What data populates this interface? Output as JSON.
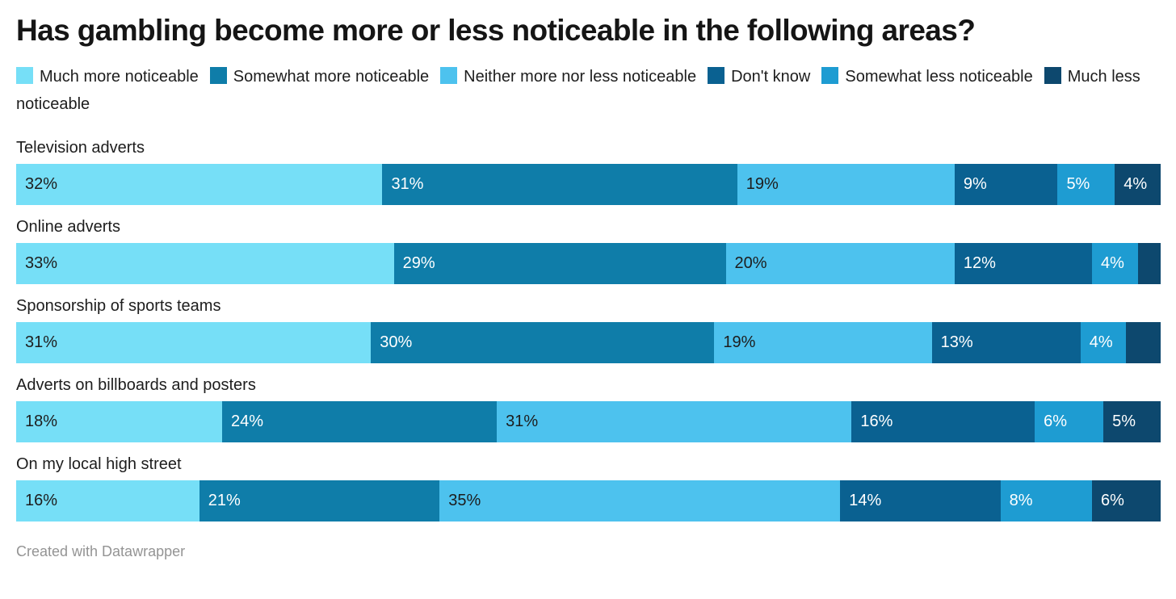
{
  "header": {
    "title": "Has gambling become more or less noticeable in the following areas?"
  },
  "footer": {
    "credit": "Created with Datawrapper"
  },
  "chart_data": {
    "type": "bar",
    "orientation": "horizontal",
    "stacked": true,
    "title": "Has gambling become more or less noticeable in the following areas?",
    "legend_position": "top",
    "value_suffix": "%",
    "label_min_value": 4,
    "axis_range": [
      0,
      100
    ],
    "grid": false,
    "categories": [
      "Television adverts",
      "Online adverts",
      "Sponsorship of sports teams",
      "Adverts on billboards and posters",
      "On my local high street"
    ],
    "series": [
      {
        "name": "Much more noticeable",
        "color": "#76dff7",
        "label_color": "#1d1d1d",
        "values": [
          32,
          33,
          31,
          18,
          16
        ]
      },
      {
        "name": "Somewhat more noticeable",
        "color": "#0f7da9",
        "label_color": "#ffffff",
        "values": [
          31,
          29,
          30,
          24,
          21
        ]
      },
      {
        "name": "Neither more nor less noticeable",
        "color": "#4dc2ee",
        "label_color": "#1d1d1d",
        "values": [
          19,
          20,
          19,
          31,
          35
        ]
      },
      {
        "name": "Don't know",
        "color": "#0a6191",
        "label_color": "#ffffff",
        "values": [
          9,
          12,
          13,
          16,
          14
        ]
      },
      {
        "name": "Somewhat less noticeable",
        "color": "#1e9cd2",
        "label_color": "#ffffff",
        "values": [
          5,
          4,
          4,
          6,
          8
        ]
      },
      {
        "name": "Much less noticeable",
        "color": "#0d486e",
        "label_color": "#ffffff",
        "values": [
          4,
          2,
          3,
          5,
          6
        ]
      }
    ]
  }
}
